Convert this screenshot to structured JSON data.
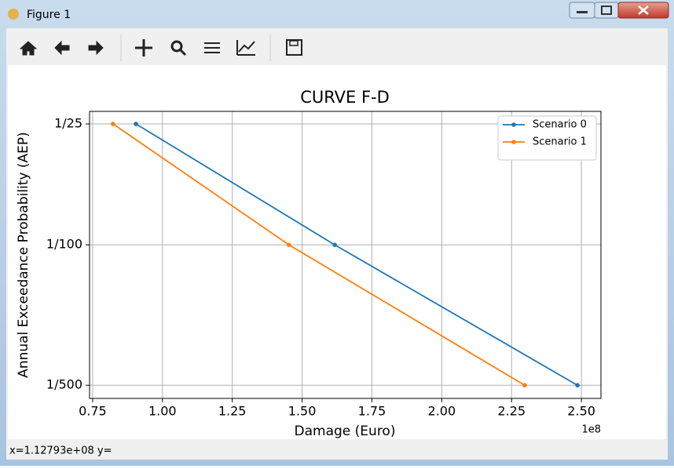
{
  "window": {
    "title": "Figure 1"
  },
  "status_bar": {
    "text": "x=1.12793e+08  y="
  },
  "chart_data": {
    "type": "line",
    "title": "CURVE F-D",
    "x_label": "Damage (Euro)",
    "y_label": "Annual Exceedance Probability (AEP)",
    "x_offset_label": "1e8",
    "series": [
      {
        "name": "Scenario 0",
        "color": "#1f77b4",
        "x": [
          0.905,
          1.617,
          2.486
        ],
        "values": [
          0.04,
          0.01,
          0.002
        ]
      },
      {
        "name": "Scenario 1",
        "color": "#ff7f0e",
        "x": [
          0.823,
          1.453,
          2.297
        ],
        "values": [
          0.04,
          0.01,
          0.002
        ]
      }
    ],
    "xlim": [
      0.739,
      2.57
    ],
    "xticks": [
      0.75,
      {
        "value": 1.0,
        "label": "1.00"
      },
      1.25,
      {
        "value": 1.5,
        "label": "1.50"
      },
      1.75,
      {
        "value": 2.0,
        "label": "2.00"
      },
      2.25,
      {
        "value": 2.5,
        "label": "2.50"
      }
    ],
    "ylim": [
      0.00172,
      0.0462
    ],
    "yticks": [
      {
        "value": 0.04,
        "label": "1/25"
      },
      {
        "value": 0.01,
        "label": "1/100"
      },
      {
        "value": 0.002,
        "label": "1/500"
      }
    ],
    "y_log": true,
    "grid": true,
    "legend": "upper right"
  }
}
